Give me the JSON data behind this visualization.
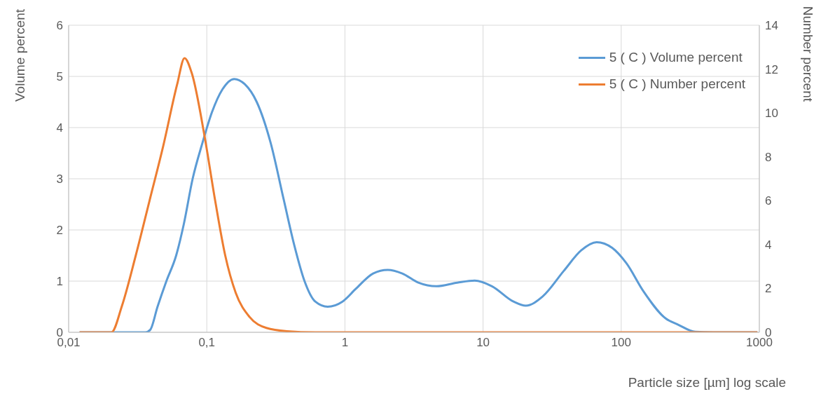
{
  "chart_data": {
    "type": "line",
    "xlabel": "Particle size [µm] log scale",
    "ylabel": "Volume percent",
    "y2label": "Number percent",
    "log": "x",
    "grid": true,
    "legend": "top right",
    "marker": "none",
    "line_style": "solid",
    "xlim": [
      0.01,
      1000
    ],
    "xticks": [
      {
        "value": 0.01,
        "label": "0,01"
      },
      {
        "value": 0.1,
        "label": "0,1"
      },
      1,
      10,
      100,
      1000
    ],
    "ylim": [
      0,
      6
    ],
    "yticks": [
      0,
      1,
      2,
      3,
      4,
      5,
      6
    ],
    "y2lim": [
      0,
      14
    ],
    "y2ticks": [
      0,
      2,
      4,
      6,
      8,
      10,
      12,
      14
    ],
    "series": [
      {
        "name": "5 ( C ) Volume percent",
        "color": "#5b9bd5",
        "x": [
          0.012,
          0.036,
          0.039,
          0.044,
          0.051,
          0.06,
          0.068,
          0.079,
          0.093,
          0.109,
          0.13,
          0.158,
          0.188,
          0.23,
          0.29,
          0.36,
          0.43,
          0.51,
          0.61,
          0.75,
          0.96,
          1.2,
          1.6,
          2.04,
          2.6,
          3.4,
          4.6,
          6.5,
          8.7,
          11.6,
          16.6,
          20.4,
          27,
          38.4,
          51.3,
          66.4,
          86,
          109,
          145,
          210,
          258,
          344,
          487,
          968
        ],
        "values": [
          0,
          0,
          0.05,
          0.5,
          1.0,
          1.5,
          2.1,
          3.0,
          3.7,
          4.3,
          4.75,
          4.95,
          4.85,
          4.5,
          3.7,
          2.6,
          1.7,
          1.0,
          0.6,
          0.5,
          0.6,
          0.85,
          1.15,
          1.22,
          1.15,
          0.97,
          0.9,
          0.97,
          1.01,
          0.9,
          0.6,
          0.52,
          0.7,
          1.2,
          1.6,
          1.76,
          1.65,
          1.35,
          0.8,
          0.27,
          0.15,
          0.01,
          0,
          0
        ]
      },
      {
        "name": "5 ( C ) Number percent",
        "color": "#ed7d31",
        "axis": "y2",
        "x": [
          0.012,
          0.0204,
          0.0243,
          0.0306,
          0.0385,
          0.0484,
          0.061,
          0.069,
          0.078,
          0.096,
          0.115,
          0.136,
          0.162,
          0.204,
          0.27,
          0.38,
          0.61,
          968
        ],
        "values": [
          0,
          0,
          1.2,
          3.5,
          6,
          8.5,
          11.3,
          12.5,
          11.8,
          9,
          6,
          3.5,
          1.8,
          0.7,
          0.2,
          0.05,
          0,
          0
        ]
      }
    ]
  }
}
